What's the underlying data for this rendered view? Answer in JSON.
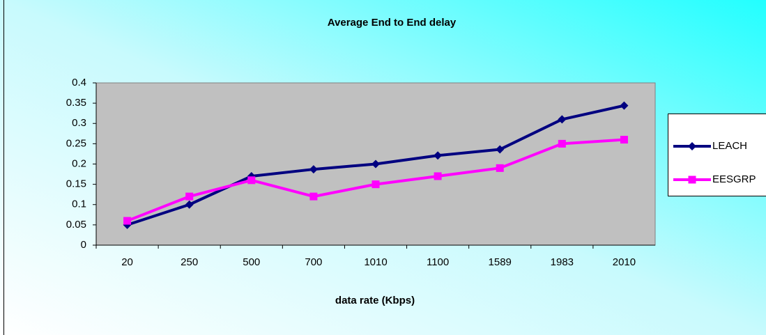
{
  "chart_data": {
    "type": "line",
    "title": "Average End to End delay",
    "x_label": "data rate (Kbps)",
    "categories": [
      "20",
      "250",
      "500",
      "700",
      "1010",
      "1100",
      "1589",
      "1983",
      "2010"
    ],
    "series": [
      {
        "name": "LEACH",
        "color": "#000080",
        "marker": "diamond",
        "values": [
          0.05,
          0.1,
          0.17,
          0.187,
          0.2,
          0.221,
          0.236,
          0.31,
          0.344
        ]
      },
      {
        "name": "EESGRP",
        "color": "#ff00ff",
        "marker": "square",
        "values": [
          0.06,
          0.12,
          0.16,
          0.12,
          0.15,
          0.17,
          0.19,
          0.25,
          0.26
        ]
      }
    ],
    "ylim": [
      0,
      0.4
    ],
    "yticks": [
      0,
      0.05,
      0.1,
      0.15,
      0.2,
      0.25,
      0.3,
      0.35,
      0.4
    ],
    "plot_background": "#c0c0c0",
    "legend": "right"
  }
}
